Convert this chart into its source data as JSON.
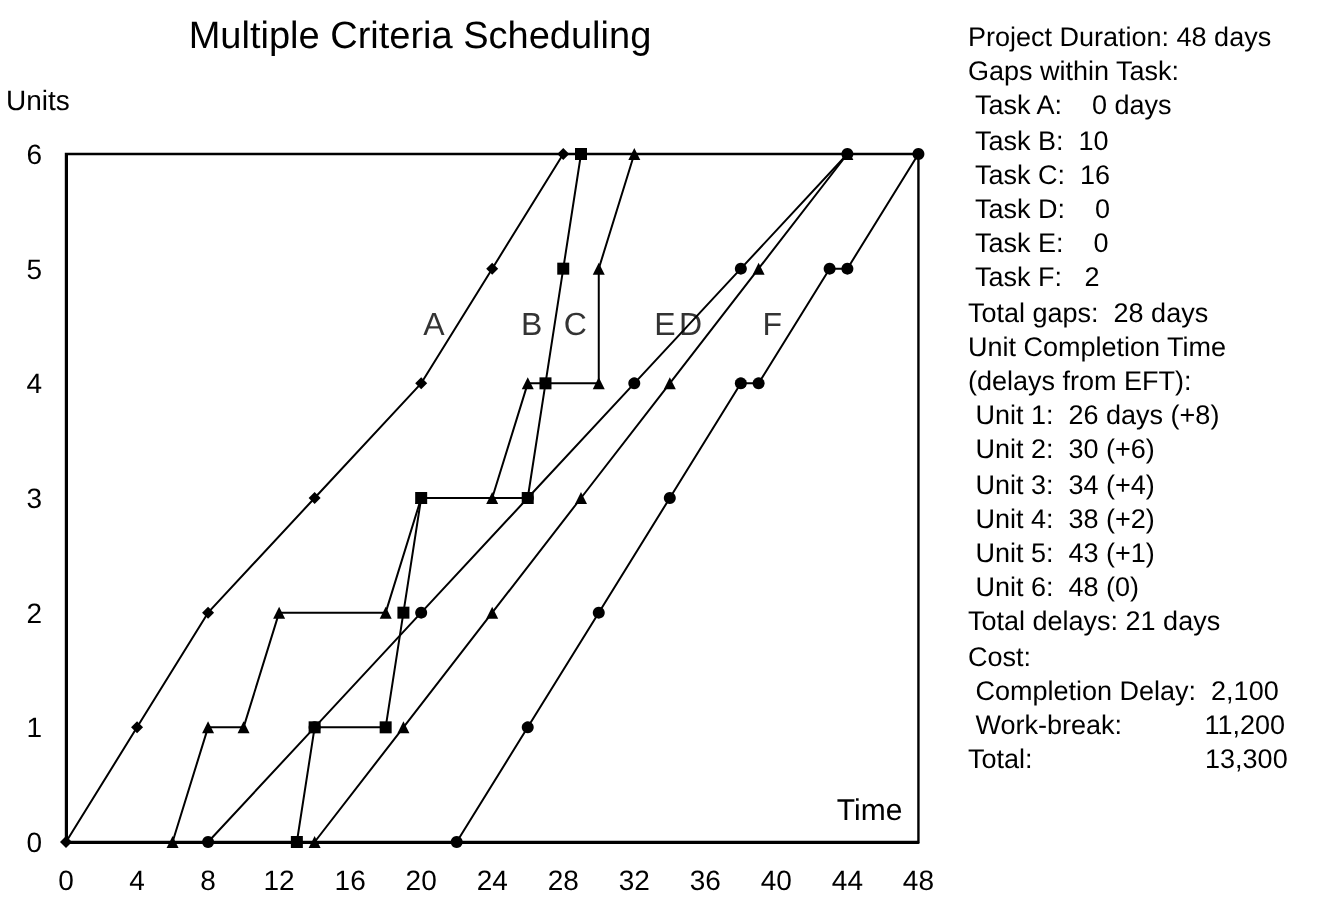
{
  "chart_data": {
    "type": "line",
    "title": "Multiple Criteria Scheduling",
    "xlabel": "Time",
    "ylabel": "Units",
    "xlim": [
      0,
      48
    ],
    "xticks": [
      0,
      4,
      8,
      12,
      16,
      20,
      24,
      28,
      32,
      36,
      40,
      44,
      48
    ],
    "ylim": [
      0,
      6
    ],
    "yticks": [
      0,
      1,
      2,
      3,
      4,
      5,
      6
    ],
    "grid": false,
    "series": [
      {
        "name": "A",
        "color": "#000000",
        "marker": "diamond",
        "x": [
          0,
          4,
          8,
          14,
          20,
          24,
          28
        ],
        "values": [
          0,
          1,
          2,
          3,
          4,
          5,
          6
        ]
      },
      {
        "name": "B",
        "color": "#000000",
        "marker": "square",
        "x": [
          13,
          14,
          18,
          19,
          20,
          26,
          27,
          28,
          29
        ],
        "values": [
          0,
          1,
          1,
          2,
          3,
          3,
          4,
          5,
          6
        ]
      },
      {
        "name": "C",
        "color": "#000000",
        "marker": "triangle",
        "x": [
          6,
          8,
          10,
          12,
          18,
          20,
          24,
          26,
          30,
          30,
          32
        ],
        "values": [
          0,
          1,
          1,
          2,
          2,
          3,
          3,
          4,
          4,
          5,
          6
        ]
      },
      {
        "name": "D",
        "color": "#000000",
        "marker": "triangle",
        "x": [
          14,
          19,
          24,
          29,
          34,
          39,
          44
        ],
        "values": [
          0,
          1,
          2,
          3,
          4,
          5,
          6
        ]
      },
      {
        "name": "E",
        "color": "#000000",
        "marker": "circle",
        "x": [
          8,
          14,
          20,
          26,
          32,
          38,
          44
        ],
        "values": [
          0,
          1,
          2,
          3,
          4,
          5,
          6
        ]
      },
      {
        "name": "F",
        "color": "#000000",
        "marker": "circle",
        "x": [
          22,
          26,
          30,
          34,
          38,
          39,
          43,
          44,
          48
        ],
        "values": [
          0,
          1,
          2,
          3,
          4,
          4,
          5,
          5,
          6
        ]
      }
    ],
    "annotations": [
      "Project Duration: 48 days",
      "Gaps within Task:",
      " Task A:    0 days",
      " Task B:  10",
      " Task C:  16",
      " Task D:    0",
      " Task E:    0",
      " Task F:   2",
      "Total gaps:  28 days",
      "Unit Completion Time",
      "(delays from EFT):",
      " Unit 1:  26 days (+8)",
      " Unit 2:  30 (+6)",
      " Unit 3:  34 (+4)",
      " Unit 4:  38 (+2)",
      " Unit 5:  43 (+1)",
      " Unit 6:  48 (0)",
      "Total delays: 21 days",
      "Cost:",
      " Completion Delay:  2,100",
      " Work-break:           11,200",
      "Total:                       13,300"
    ]
  }
}
